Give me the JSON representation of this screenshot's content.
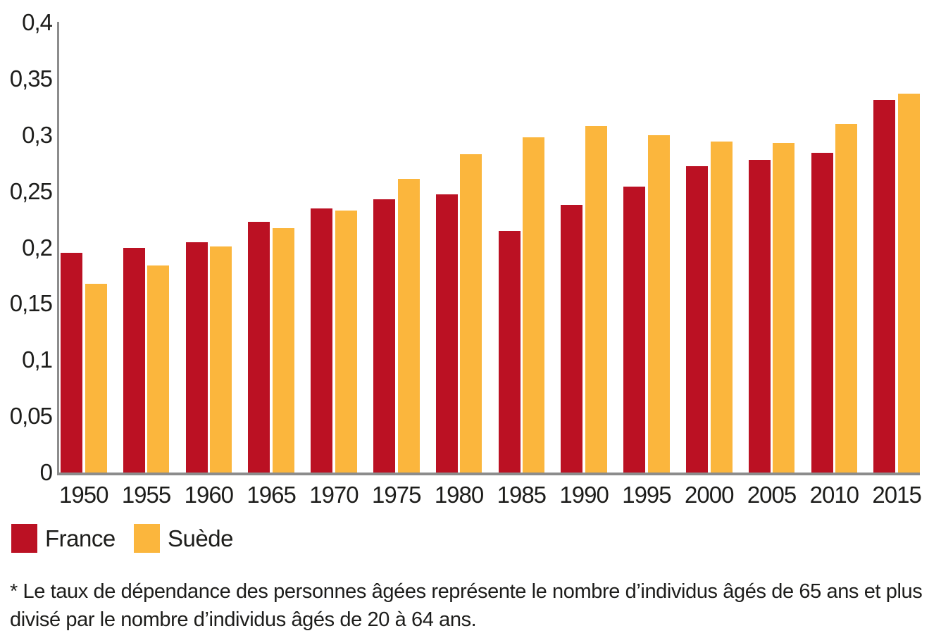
{
  "chart_data": {
    "type": "bar",
    "title": "",
    "xlabel": "",
    "ylabel": "",
    "grid": false,
    "legend_position": "bottom-left",
    "decimal_separator": ",",
    "ylim": [
      0,
      0.4
    ],
    "categories": [
      "1950",
      "1955",
      "1960",
      "1965",
      "1970",
      "1975",
      "1980",
      "1985",
      "1990",
      "1995",
      "2000",
      "2005",
      "2010",
      "2015"
    ],
    "series": [
      {
        "name": "France",
        "color": "#bb1123",
        "values": [
          0.195,
          0.2,
          0.205,
          0.223,
          0.235,
          0.243,
          0.247,
          0.215,
          0.238,
          0.254,
          0.272,
          0.278,
          0.284,
          0.331
        ]
      },
      {
        "name": "Suède",
        "color": "#fbb63d",
        "values": [
          0.168,
          0.184,
          0.201,
          0.217,
          0.233,
          0.261,
          0.283,
          0.298,
          0.308,
          0.3,
          0.294,
          0.293,
          0.31,
          0.337
        ]
      }
    ],
    "yticks": [
      {
        "value": 0,
        "label": "0"
      },
      {
        "value": 0.05,
        "label": "0,05"
      },
      {
        "value": 0.1,
        "label": "0,1"
      },
      {
        "value": 0.15,
        "label": "0,15"
      },
      {
        "value": 0.2,
        "label": "0,2"
      },
      {
        "value": 0.25,
        "label": "0,25"
      },
      {
        "value": 0.3,
        "label": "0,3"
      },
      {
        "value": 0.35,
        "label": "0,35"
      },
      {
        "value": 0.4,
        "label": "0,4"
      }
    ],
    "axis_color": "#8c8c8c"
  },
  "legend": {
    "items": [
      {
        "label": "France",
        "color": "#bb1123"
      },
      {
        "label": "Suède",
        "color": "#fbb63d"
      }
    ]
  },
  "footnote": {
    "lines": [
      "* Le taux de dépendance des personnes âgées représente le nombre d’individus âgés de 65 ans et plus",
      "divisé par le nombre d’individus âgés de 20 à 64 ans."
    ]
  }
}
